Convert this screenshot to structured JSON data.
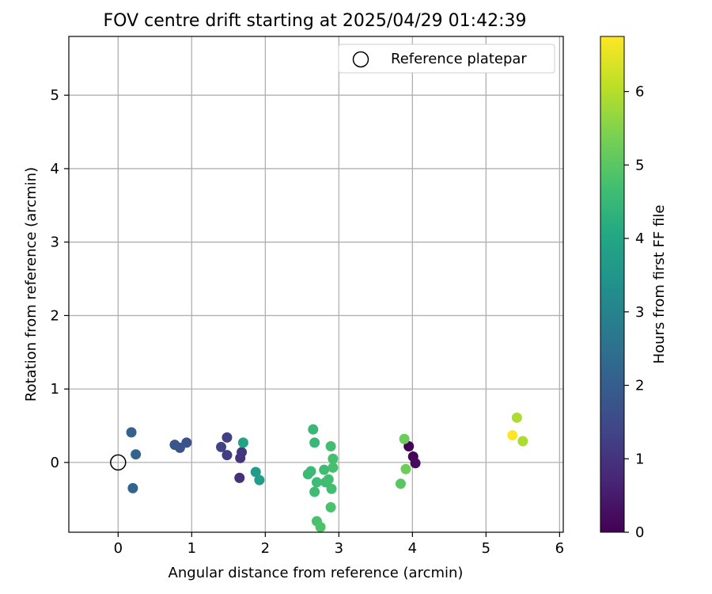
{
  "chart_data": {
    "type": "scatter",
    "title": "FOV centre drift starting at 2025/04/29 01:42:39",
    "xlabel": "Angular distance from reference (arcmin)",
    "ylabel": "Rotation from reference (arcmin)",
    "xlim": [
      -0.67,
      6.05
    ],
    "ylim": [
      -0.95,
      5.8
    ],
    "xticks": [
      0,
      1,
      2,
      3,
      4,
      5,
      6
    ],
    "yticks": [
      0,
      1,
      2,
      3,
      4,
      5
    ],
    "grid": true,
    "legend": {
      "position": "top-right",
      "entries": [
        {
          "label": "Reference platepar",
          "marker": "open-circle"
        }
      ]
    },
    "reference_point": {
      "x": 0,
      "y": 0
    },
    "colorbar": {
      "label": "Hours from first FF file",
      "range": [
        0,
        6.75
      ],
      "ticks": [
        0,
        1,
        2,
        3,
        4,
        5,
        6
      ],
      "colormap": "viridis"
    },
    "points": [
      {
        "x": 3.95,
        "y": 0.22,
        "hours": 0.0
      },
      {
        "x": 4.01,
        "y": 0.08,
        "hours": 0.1
      },
      {
        "x": 4.04,
        "y": -0.01,
        "hours": 0.2
      },
      {
        "x": 1.65,
        "y": -0.21,
        "hours": 0.9
      },
      {
        "x": 1.66,
        "y": 0.06,
        "hours": 1.0
      },
      {
        "x": 1.68,
        "y": 0.14,
        "hours": 1.05
      },
      {
        "x": 1.48,
        "y": 0.1,
        "hours": 1.2
      },
      {
        "x": 1.48,
        "y": 0.34,
        "hours": 1.25
      },
      {
        "x": 1.4,
        "y": 0.21,
        "hours": 1.3
      },
      {
        "x": 0.84,
        "y": 0.2,
        "hours": 1.7
      },
      {
        "x": 0.93,
        "y": 0.27,
        "hours": 1.75
      },
      {
        "x": 0.77,
        "y": 0.24,
        "hours": 1.8
      },
      {
        "x": 0.18,
        "y": 0.41,
        "hours": 2.1
      },
      {
        "x": 0.24,
        "y": 0.11,
        "hours": 2.15
      },
      {
        "x": 0.2,
        "y": -0.35,
        "hours": 2.2
      },
      {
        "x": 1.87,
        "y": -0.13,
        "hours": 3.7
      },
      {
        "x": 1.92,
        "y": -0.24,
        "hours": 3.75
      },
      {
        "x": 1.7,
        "y": 0.27,
        "hours": 3.9
      },
      {
        "x": 2.65,
        "y": 0.45,
        "hours": 4.5
      },
      {
        "x": 2.67,
        "y": 0.27,
        "hours": 4.5
      },
      {
        "x": 2.58,
        "y": -0.16,
        "hours": 4.55
      },
      {
        "x": 2.62,
        "y": -0.12,
        "hours": 4.55
      },
      {
        "x": 2.7,
        "y": -0.27,
        "hours": 4.6
      },
      {
        "x": 2.67,
        "y": -0.4,
        "hours": 4.6
      },
      {
        "x": 2.8,
        "y": -0.1,
        "hours": 4.65
      },
      {
        "x": 2.82,
        "y": -0.27,
        "hours": 4.65
      },
      {
        "x": 2.86,
        "y": -0.23,
        "hours": 4.7
      },
      {
        "x": 2.9,
        "y": -0.36,
        "hours": 4.7
      },
      {
        "x": 2.89,
        "y": 0.22,
        "hours": 4.7
      },
      {
        "x": 2.92,
        "y": 0.05,
        "hours": 4.75
      },
      {
        "x": 2.92,
        "y": -0.07,
        "hours": 4.75
      },
      {
        "x": 2.89,
        "y": -0.61,
        "hours": 4.8
      },
      {
        "x": 2.7,
        "y": -0.8,
        "hours": 4.8
      },
      {
        "x": 2.75,
        "y": -0.88,
        "hours": 4.85
      },
      {
        "x": 3.84,
        "y": -0.29,
        "hours": 5.0
      },
      {
        "x": 3.89,
        "y": 0.32,
        "hours": 5.2
      },
      {
        "x": 3.91,
        "y": -0.09,
        "hours": 5.25
      },
      {
        "x": 5.42,
        "y": 0.61,
        "hours": 5.9
      },
      {
        "x": 5.5,
        "y": 0.29,
        "hours": 5.9
      },
      {
        "x": 5.36,
        "y": 0.37,
        "hours": 6.75
      }
    ]
  }
}
